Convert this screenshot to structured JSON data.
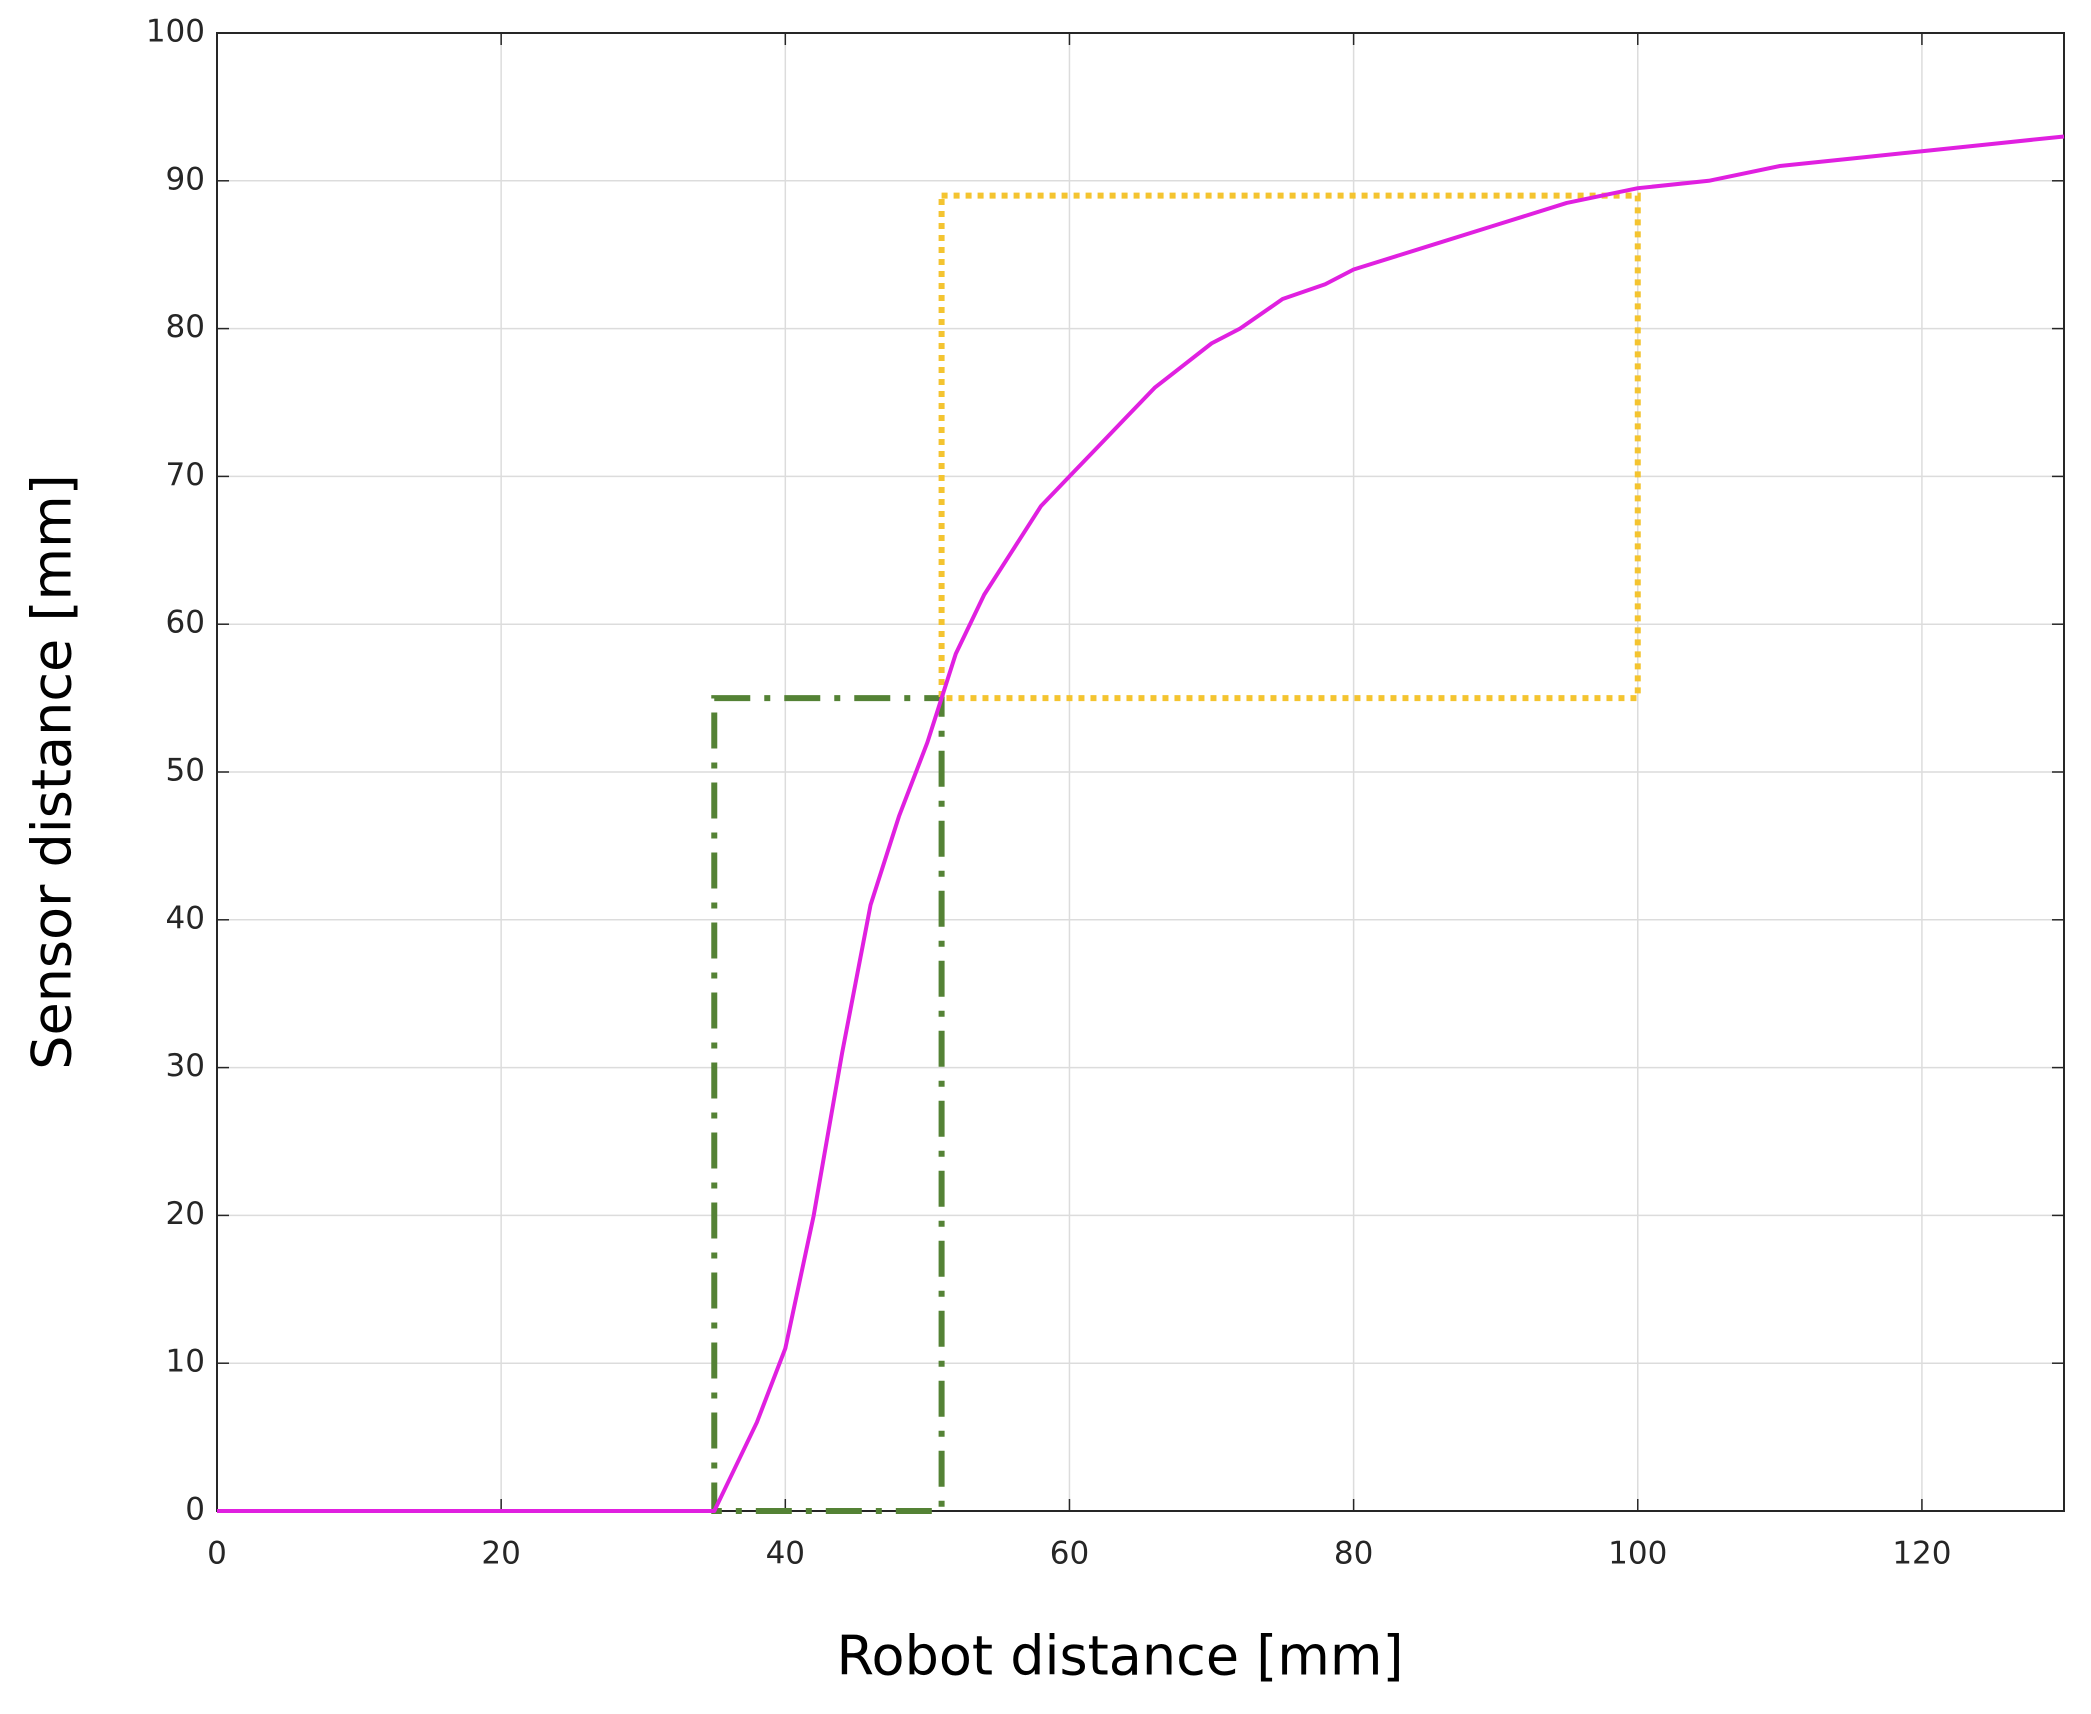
{
  "chart_data": {
    "type": "line",
    "x_label": "Robot distance [mm]",
    "y_label": "Sensor distance [mm]",
    "x": [
      0,
      10,
      20,
      30,
      35,
      36,
      38,
      40,
      42,
      44,
      46,
      48,
      50,
      51,
      52,
      54,
      56,
      58,
      60,
      62,
      64,
      66,
      68,
      70,
      72,
      75,
      78,
      80,
      85,
      90,
      95,
      100,
      105,
      110,
      115,
      120,
      125,
      130
    ],
    "values": [
      0,
      0,
      0,
      0,
      0,
      2,
      6,
      11,
      20,
      31,
      41,
      47,
      52,
      55,
      58,
      62,
      65,
      68,
      70,
      72,
      74,
      76,
      77.5,
      79,
      80,
      82,
      83,
      84,
      85.5,
      87,
      88.5,
      89.5,
      90,
      91,
      91.5,
      92,
      92.5,
      93
    ],
    "color": "#e020e0",
    "xlim": [
      0,
      130
    ],
    "ylim": [
      0,
      100
    ],
    "xticks": [
      0,
      20,
      40,
      60,
      80,
      100,
      120
    ],
    "yticks": [
      0,
      10,
      20,
      30,
      40,
      50,
      60,
      70,
      80,
      90,
      100
    ],
    "grid": true,
    "regions": [
      {
        "x": [
          35,
          51
        ],
        "y": [
          0,
          55
        ],
        "color": "#548235",
        "style": "dashdot"
      },
      {
        "x": [
          51,
          100
        ],
        "y": [
          55,
          89
        ],
        "color": "#f4c430",
        "style": "dotted"
      }
    ]
  }
}
